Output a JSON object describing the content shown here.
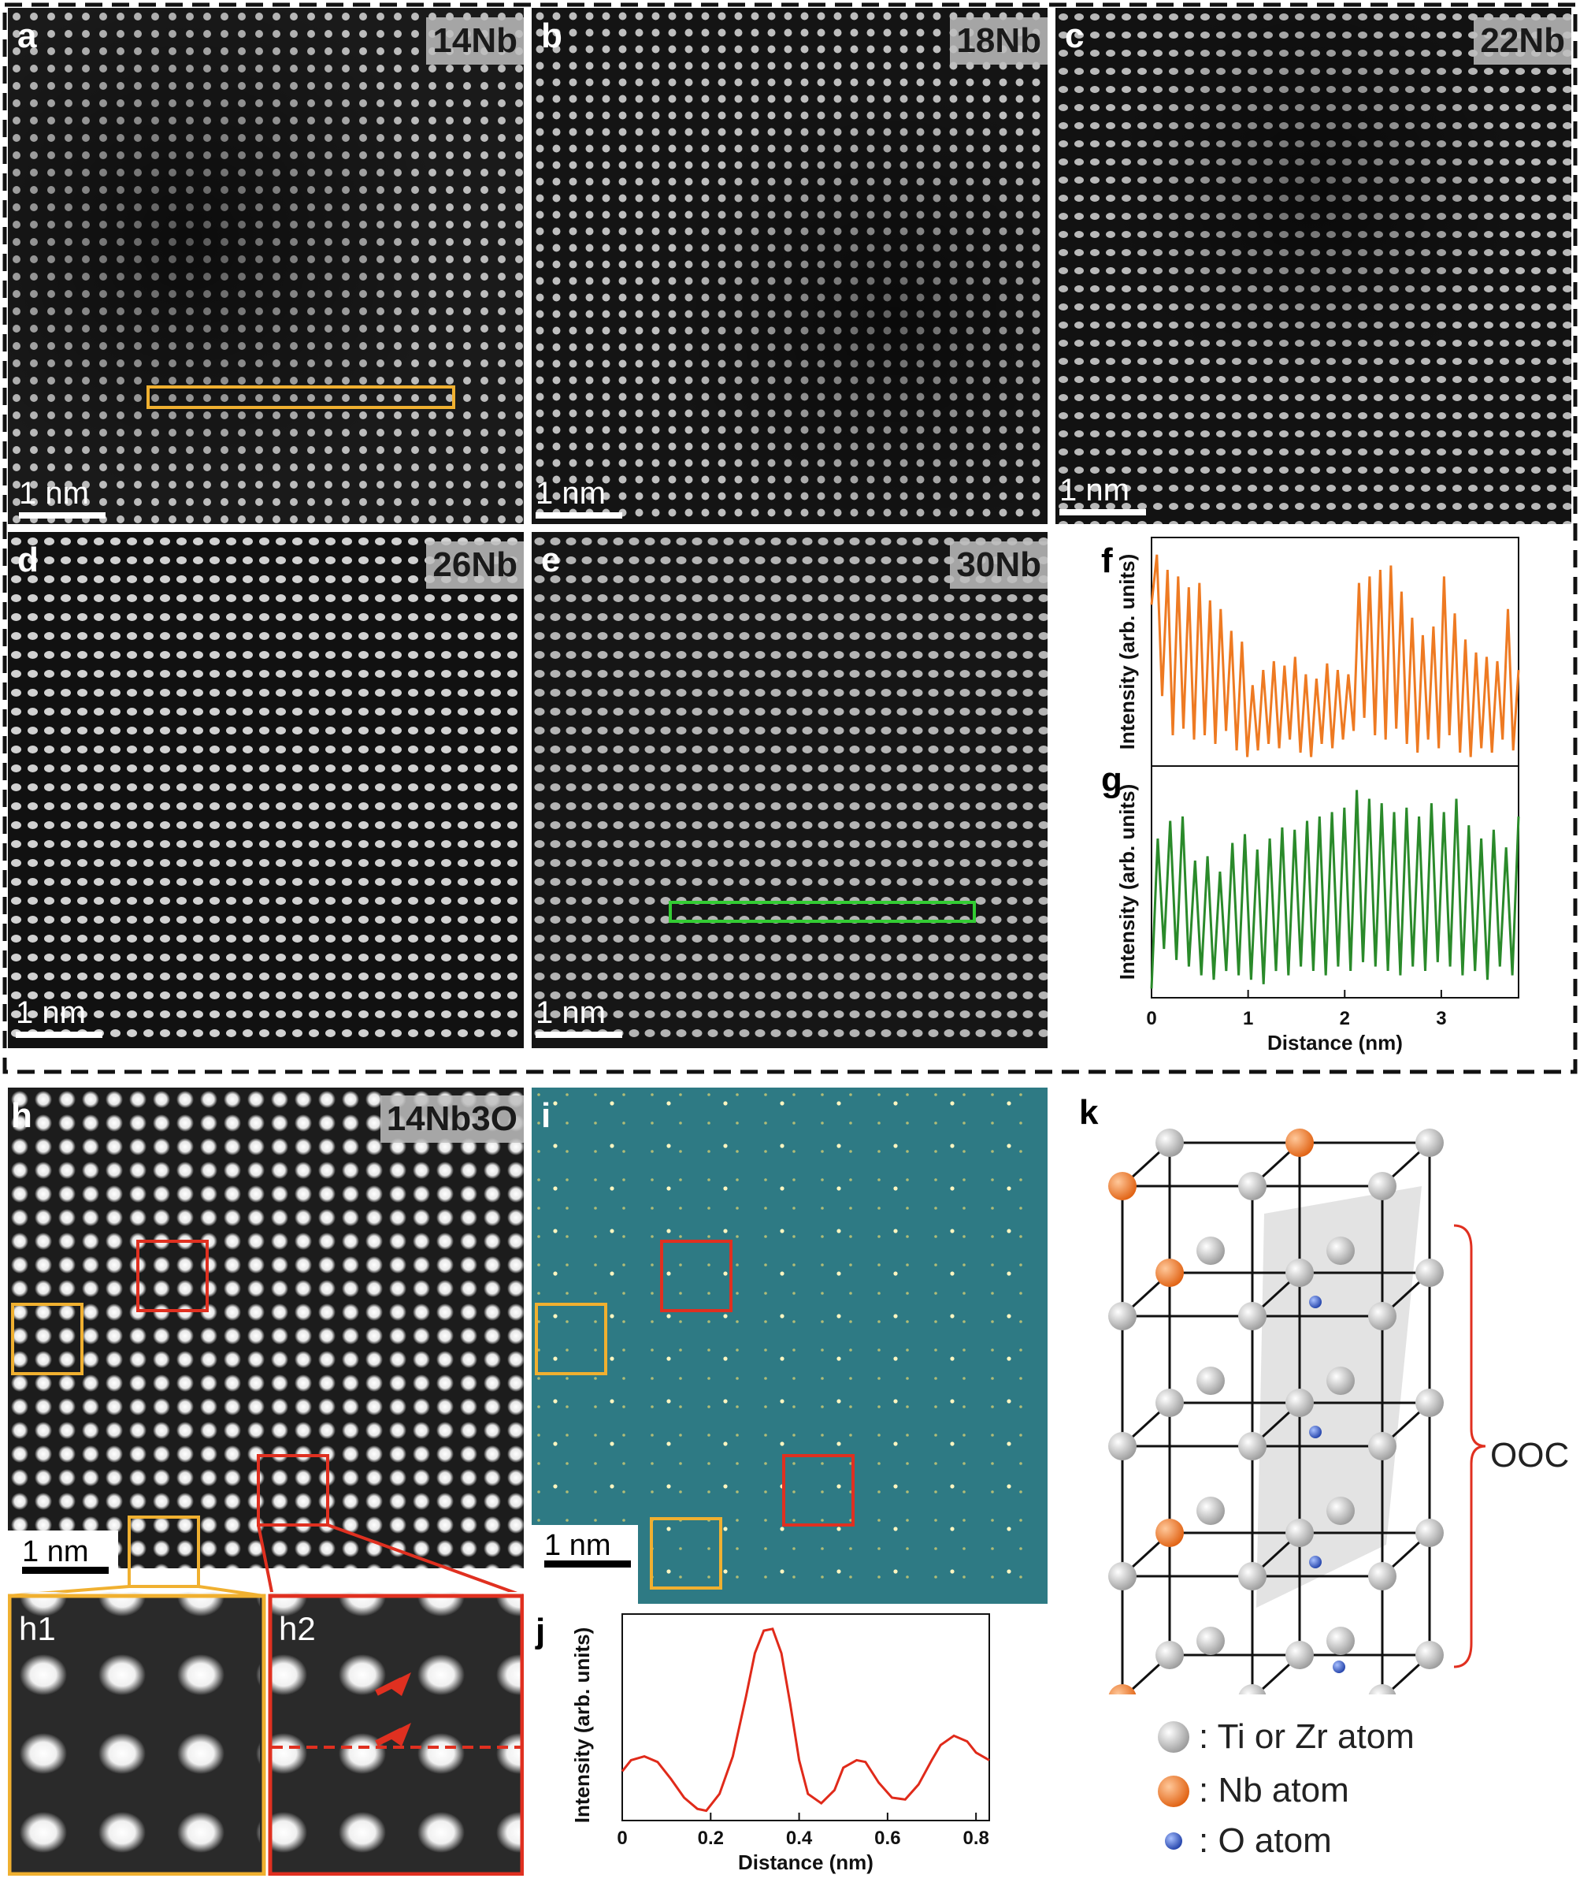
{
  "panels": {
    "a": {
      "letter": "a",
      "tag": "14Nb",
      "scale": "1 nm"
    },
    "b": {
      "letter": "b",
      "tag": "18Nb",
      "scale": "1 nm"
    },
    "c": {
      "letter": "c",
      "tag": "22Nb",
      "scale": "1 nm"
    },
    "d": {
      "letter": "d",
      "tag": "26Nb",
      "scale": "1 nm"
    },
    "e": {
      "letter": "e",
      "tag": "30Nb",
      "scale": "1 nm"
    },
    "h": {
      "letter": "h",
      "tag": "14Nb3O",
      "scale": "1 nm",
      "sub1": "h1",
      "sub2": "h2"
    },
    "i": {
      "letter": "i",
      "scale": "1 nm"
    },
    "k": {
      "letter": "k",
      "bracket_label": "OOC"
    }
  },
  "legend": [
    {
      "label": ": Ti or Zr atom",
      "color": "#c8c8c8"
    },
    {
      "label": ": Nb atom",
      "color": "#ee7a2a"
    },
    {
      "label": ": O atom",
      "color": "#3b5fc8"
    }
  ],
  "colors": {
    "orange_box": "#f0b030",
    "green_box": "#33cc33",
    "red_box": "#e03020",
    "plot_f": "#ee7a22",
    "plot_g": "#2a8a2a",
    "plot_j": "#e02a1a",
    "fft_bg": "#2e7a84"
  },
  "chart_data": [
    {
      "type": "line",
      "id": "f",
      "letter": "f",
      "xlabel": "",
      "ylabel": "Intensity (arb. units)",
      "xlim": [
        0,
        3.8
      ],
      "series": [
        {
          "values": [
            0.72,
            0.95,
            0.3,
            0.88,
            0.12,
            0.85,
            0.15,
            0.8,
            0.1,
            0.82,
            0.12,
            0.74,
            0.08,
            0.7,
            0.14,
            0.6,
            0.05,
            0.55,
            0.02,
            0.35,
            0.05,
            0.42,
            0.08,
            0.46,
            0.06,
            0.44,
            0.1,
            0.48,
            0.04,
            0.4,
            0.02,
            0.38,
            0.08,
            0.45,
            0.06,
            0.42,
            0.1,
            0.4,
            0.14,
            0.82,
            0.2,
            0.85,
            0.12,
            0.88,
            0.1,
            0.9,
            0.15,
            0.78,
            0.08,
            0.66,
            0.04,
            0.58,
            0.1,
            0.62,
            0.06,
            0.85,
            0.12,
            0.68,
            0.04,
            0.56,
            0.02,
            0.5,
            0.06,
            0.48,
            0.04,
            0.46,
            0.1,
            0.7,
            0.05,
            0.42
          ]
        }
      ]
    },
    {
      "type": "line",
      "id": "g",
      "letter": "g",
      "xlabel": "Distance (nm)",
      "ylabel": "Intensity (arb. units)",
      "xlim": [
        0,
        3.8
      ],
      "xticks": [
        "0",
        "1",
        "2",
        "3"
      ],
      "series": [
        {
          "values": [
            0.02,
            0.7,
            0.2,
            0.78,
            0.15,
            0.8,
            0.12,
            0.6,
            0.08,
            0.62,
            0.06,
            0.55,
            0.1,
            0.68,
            0.08,
            0.72,
            0.06,
            0.65,
            0.04,
            0.7,
            0.1,
            0.75,
            0.08,
            0.74,
            0.12,
            0.78,
            0.1,
            0.8,
            0.08,
            0.82,
            0.12,
            0.84,
            0.1,
            0.92,
            0.14,
            0.88,
            0.12,
            0.86,
            0.1,
            0.82,
            0.08,
            0.84,
            0.12,
            0.8,
            0.1,
            0.86,
            0.14,
            0.82,
            0.12,
            0.88,
            0.08,
            0.76,
            0.1,
            0.7,
            0.06,
            0.74,
            0.12,
            0.66,
            0.08,
            0.8
          ]
        }
      ]
    },
    {
      "type": "line",
      "id": "j",
      "letter": "j",
      "xlabel": "Distance (nm)",
      "ylabel": "Intensity (arb. units)",
      "xlim": [
        0,
        0.83
      ],
      "xticks": [
        "0",
        "0.2",
        "0.4",
        "0.6",
        "0.8"
      ],
      "x": [
        0,
        0.02,
        0.05,
        0.08,
        0.11,
        0.14,
        0.17,
        0.19,
        0.22,
        0.25,
        0.28,
        0.3,
        0.32,
        0.34,
        0.36,
        0.38,
        0.4,
        0.42,
        0.45,
        0.48,
        0.5,
        0.53,
        0.55,
        0.58,
        0.61,
        0.64,
        0.67,
        0.7,
        0.72,
        0.75,
        0.78,
        0.8,
        0.83
      ],
      "series": [
        {
          "values": [
            0.22,
            0.28,
            0.3,
            0.27,
            0.18,
            0.08,
            0.02,
            0.01,
            0.1,
            0.3,
            0.62,
            0.85,
            0.97,
            0.98,
            0.85,
            0.58,
            0.28,
            0.1,
            0.05,
            0.12,
            0.24,
            0.28,
            0.27,
            0.16,
            0.08,
            0.07,
            0.15,
            0.28,
            0.36,
            0.41,
            0.38,
            0.32,
            0.28
          ]
        }
      ]
    }
  ]
}
